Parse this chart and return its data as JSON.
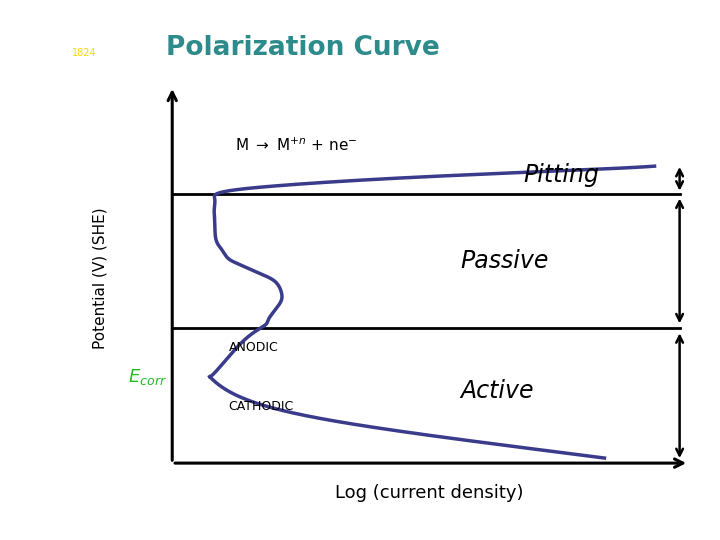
{
  "title": "Polarization Curve",
  "title_color": "#2E8B8B",
  "xlabel": "Log (current density)",
  "ylabel": "Potential (V) (SHE)",
  "bg_color": "#ffffff",
  "curve_color": "#3B3B8C",
  "curve_linewidth": 2.5,
  "E_corr_color": "#22BB22",
  "pitting_label": "Pitting",
  "passive_label": "Passive",
  "active_label": "Active",
  "anodic_label": "ANODIC",
  "cathodic_label": "CATHODIC",
  "manchester_bg": "#6B0E8B",
  "xlim": [
    0,
    10
  ],
  "ylim": [
    0,
    10
  ],
  "y_axis_x": 1.6,
  "x_axis_y": 0.8,
  "upper_line_y": 7.2,
  "lower_line_y": 4.0,
  "e_corr_x": 2.2,
  "e_corr_y": 2.85
}
